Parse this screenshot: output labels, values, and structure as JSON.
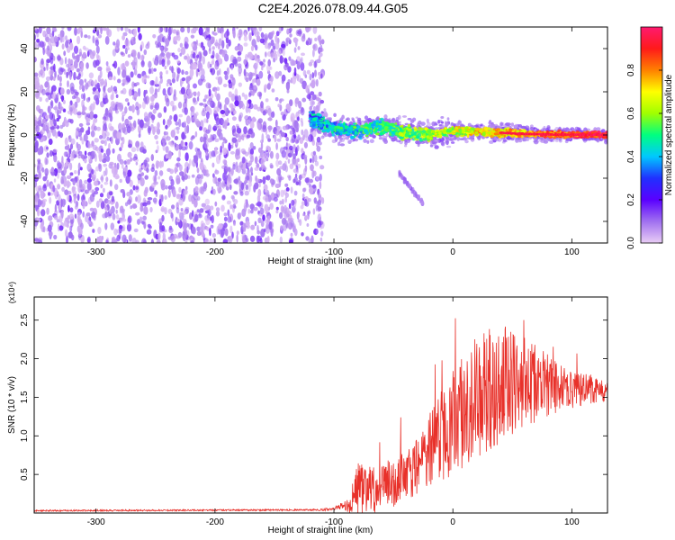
{
  "title": "C2E4.2026.078.09.44.G05",
  "chart_data": [
    {
      "type": "heatmap",
      "title": "C2E4.2026.078.09.44.G05",
      "xlabel": "Height of straight line (km)",
      "ylabel": "Frequency (Hz)",
      "xlim": [
        -352,
        130
      ],
      "ylim": [
        -50,
        50
      ],
      "xticks": [
        -300,
        -200,
        -100,
        0,
        100
      ],
      "yticks": [
        -40,
        -20,
        0,
        20,
        40
      ],
      "colorbar": {
        "label": "Normalized spectral amplitude",
        "range": [
          0.0,
          1.0
        ],
        "ticks": [
          0.0,
          0.2,
          0.4,
          0.6,
          0.8
        ],
        "tick_labels": [
          "0.0",
          "0.2",
          "0.4",
          "0.6",
          "0.8"
        ],
        "colors": [
          "#e9cdf5",
          "#a070f0",
          "#5a00ff",
          "#2030ff",
          "#00c8ff",
          "#00ff80",
          "#a0ff00",
          "#ffff00",
          "#ff8000",
          "#ff1a1a",
          "#ff1a70"
        ]
      },
      "noise_region": {
        "x": [
          -352,
          -115
        ],
        "y": [
          -50,
          50
        ]
      },
      "signal_trace": [
        {
          "x": -120,
          "y": 8
        },
        {
          "x": -100,
          "y": 3
        },
        {
          "x": -80,
          "y": 2
        },
        {
          "x": -60,
          "y": 4
        },
        {
          "x": -40,
          "y": 1
        },
        {
          "x": -20,
          "y": 0
        },
        {
          "x": 0,
          "y": 2
        },
        {
          "x": 20,
          "y": 1.5
        },
        {
          "x": 40,
          "y": 1
        },
        {
          "x": 60,
          "y": 0.5
        },
        {
          "x": 80,
          "y": 0.3
        },
        {
          "x": 100,
          "y": 0.2
        },
        {
          "x": 130,
          "y": 0
        }
      ],
      "secondary_trace": [
        {
          "x": -45,
          "y": -18
        },
        {
          "x": -35,
          "y": -25
        },
        {
          "x": -25,
          "y": -32
        }
      ]
    },
    {
      "type": "line",
      "xlabel": "Height of straight line (km)",
      "ylabel": "SNR (10 * v/v)",
      "y_multiplier": "(x10⁴)",
      "xlim": [
        -352,
        130
      ],
      "ylim": [
        0,
        2.8
      ],
      "xticks": [
        -300,
        -200,
        -100,
        0,
        100
      ],
      "yticks": [
        0.5,
        1.0,
        1.5,
        2.0,
        2.5
      ],
      "ytick_labels": [
        "0.5",
        "1.0",
        "1.5",
        "2.0",
        "2.5"
      ],
      "color": "#e8312a",
      "series": [
        {
          "name": "SNR",
          "envelope": [
            {
              "x": -352,
              "mean": 0.03,
              "spread": 0.01
            },
            {
              "x": -120,
              "mean": 0.04,
              "spread": 0.01
            },
            {
              "x": -100,
              "mean": 0.05,
              "spread": 0.02
            },
            {
              "x": -90,
              "mean": 0.1,
              "spread": 0.08
            },
            {
              "x": -80,
              "mean": 0.3,
              "spread": 0.35
            },
            {
              "x": -70,
              "mean": 0.3,
              "spread": 0.3
            },
            {
              "x": -60,
              "mean": 0.3,
              "spread": 0.3
            },
            {
              "x": -50,
              "mean": 0.4,
              "spread": 0.35
            },
            {
              "x": -40,
              "mean": 0.5,
              "spread": 0.35
            },
            {
              "x": -30,
              "mean": 0.6,
              "spread": 0.4
            },
            {
              "x": -20,
              "mean": 0.8,
              "spread": 0.5
            },
            {
              "x": -10,
              "mean": 1.0,
              "spread": 0.6
            },
            {
              "x": 0,
              "mean": 1.2,
              "spread": 0.7
            },
            {
              "x": 20,
              "mean": 1.5,
              "spread": 0.8
            },
            {
              "x": 40,
              "mean": 1.7,
              "spread": 0.8
            },
            {
              "x": 60,
              "mean": 1.7,
              "spread": 0.6
            },
            {
              "x": 80,
              "mean": 1.65,
              "spread": 0.4
            },
            {
              "x": 100,
              "mean": 1.6,
              "spread": 0.25
            },
            {
              "x": 130,
              "mean": 1.6,
              "spread": 0.15
            }
          ]
        }
      ]
    }
  ]
}
